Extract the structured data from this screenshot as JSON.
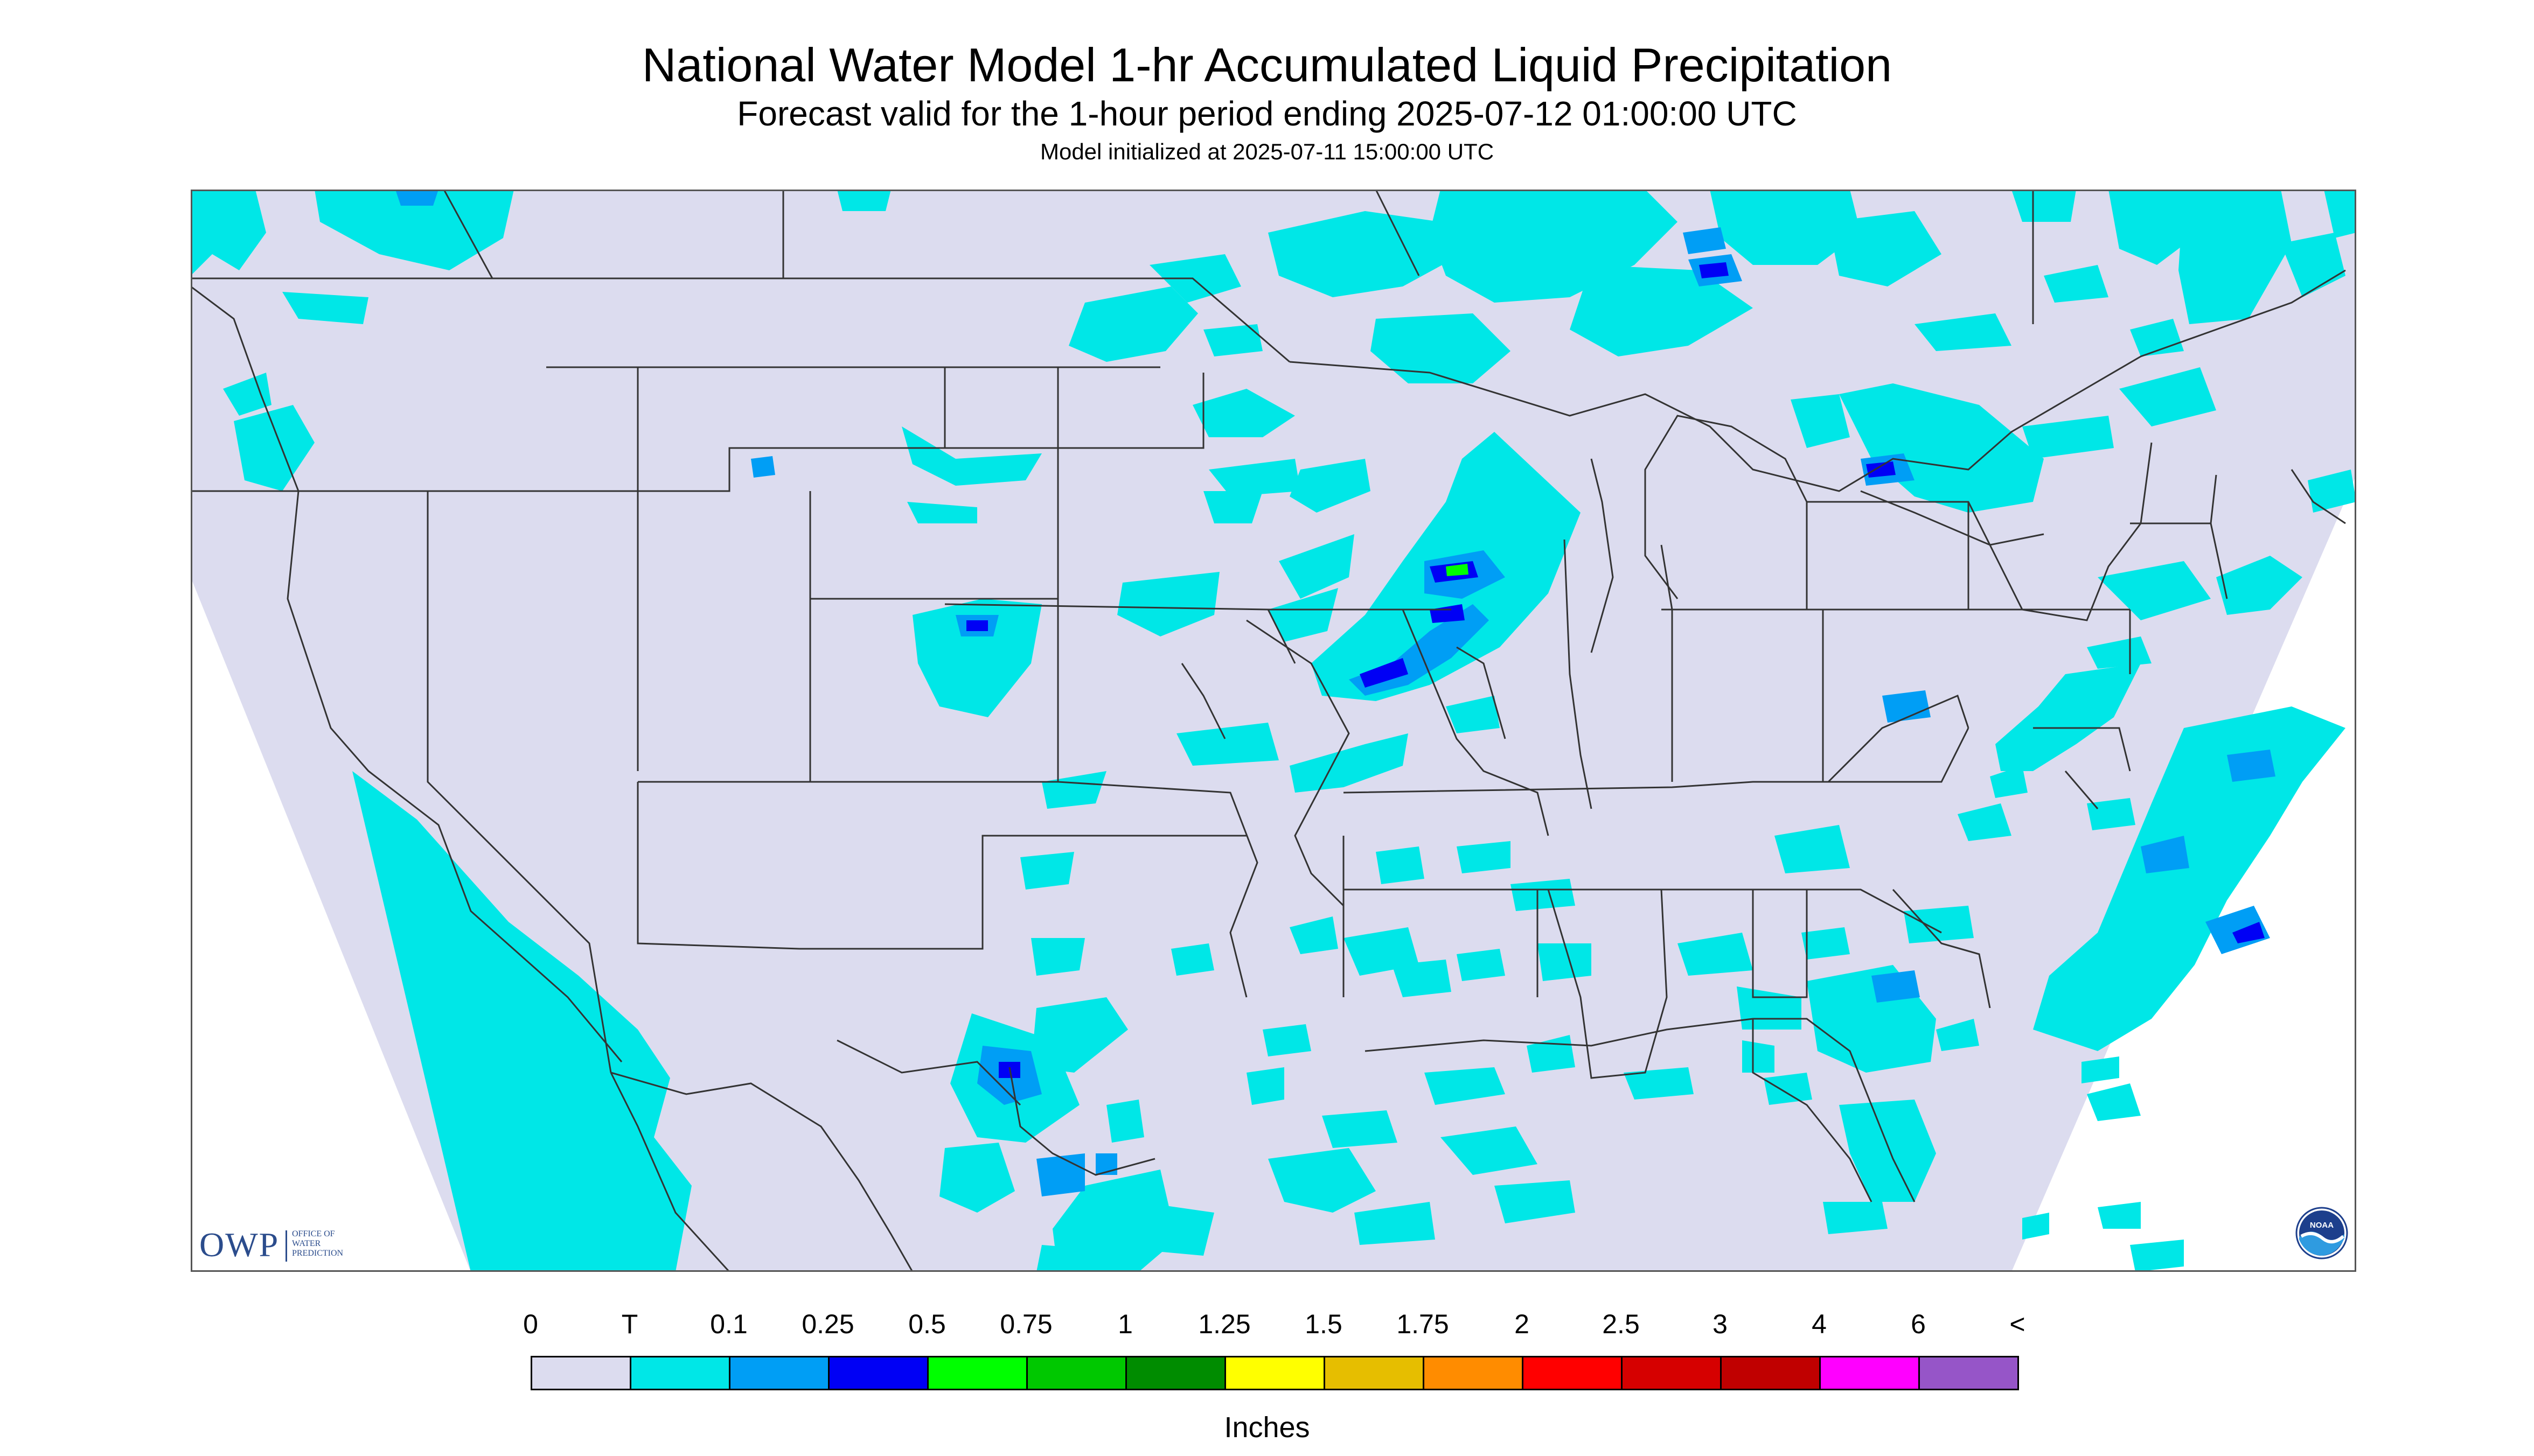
{
  "header": {
    "title": "National Water Model 1-hr Accumulated Liquid Precipitation",
    "subtitle": "Forecast valid for the 1-hour period ending 2025-07-12 01:00:00 UTC",
    "init_line": "Model initialized at 2025-07-11 15:00:00 UTC"
  },
  "legend": {
    "labels": [
      "0",
      "T",
      "0.1",
      "0.25",
      "0.5",
      "0.75",
      "1",
      "1.25",
      "1.5",
      "1.75",
      "2",
      "2.5",
      "3",
      "4",
      "6",
      "<"
    ],
    "colors": [
      "#dcdcef",
      "#00e7e7",
      "#009ef5",
      "#0000f5",
      "#00ff00",
      "#00c800",
      "#008c00",
      "#ffff00",
      "#e6be00",
      "#ff8c00",
      "#ff0000",
      "#d60000",
      "#c00000",
      "#ff00ff",
      "#9655c8"
    ],
    "units": "Inches"
  },
  "logos": {
    "owp_word": "OWP",
    "owp_lines": [
      "OFFICE OF",
      "WATER",
      "PREDICTION"
    ],
    "noaa_text": "NOAA"
  },
  "map": {
    "background_color": "#dcdcef",
    "light_precip_color": "#00e7e7",
    "moderate_precip_color": "#009ef5",
    "heavy_precip_color": "#0000f5",
    "peak_precip_color": "#00ff00",
    "outline_color": "#333333"
  }
}
